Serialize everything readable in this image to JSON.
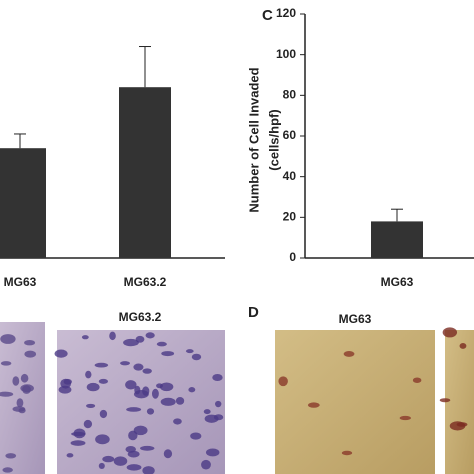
{
  "chart_data": [
    {
      "type": "bar",
      "categories": [
        "MG63",
        "MG63.2"
      ],
      "values": [
        54,
        84
      ],
      "errors": [
        7,
        20
      ],
      "color": "#333333",
      "ylim": [
        0,
        120
      ]
    },
    {
      "type": "bar",
      "ylabel": [
        "Number of Cell Invaded",
        "(cells/hpf)"
      ],
      "categories": [
        "MG63"
      ],
      "values": [
        18
      ],
      "errors": [
        6
      ],
      "color": "#333333",
      "ylim": [
        0,
        120
      ],
      "yticks": [
        0,
        20,
        40,
        60,
        80,
        100,
        120
      ]
    }
  ],
  "panels": {
    "c": "C",
    "d": "D"
  },
  "images": [
    {
      "label": "MG63.2"
    },
    {
      "label": "MG63"
    }
  ]
}
